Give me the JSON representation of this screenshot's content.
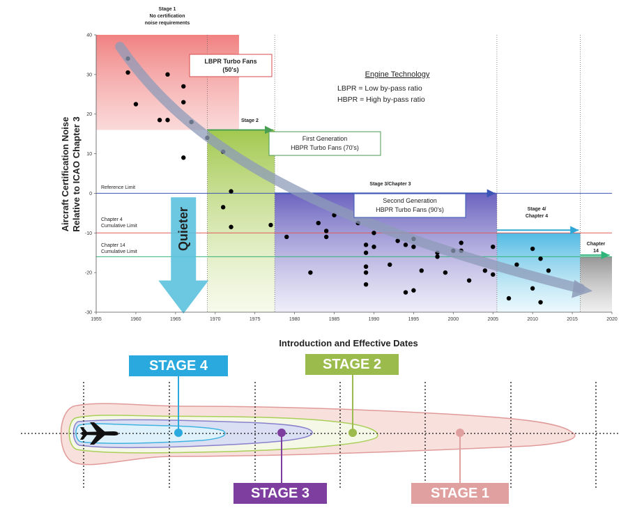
{
  "colors": {
    "stage1_region": "#f28b8b",
    "stage2_region": "#a9cc4a",
    "stage3_region": "#7a72c8",
    "stage4_region": "#6cc7e8",
    "chapter14_region": "#b9b9b9",
    "reference_line": "#3a55b5",
    "chapter4_line": "#e05a5a",
    "chapter14_line": "#2fb57a",
    "trend_arrow": "#9aa6c0",
    "quieter_arrow": "#5bc2dd",
    "badge_stage4": "#2aa9de",
    "badge_stage2": "#9bbb4d",
    "badge_stage3": "#7e3ea0",
    "badge_stage1": "#e0a0a0"
  },
  "chart_data": {
    "type": "scatter",
    "xlabel": "Introduction and Effective Dates",
    "ylabel_line1": "Aircraft Certification Noise",
    "ylabel_line2": "Relative to ICAO Chapter 3",
    "xlim": [
      1955,
      2020
    ],
    "ylim": [
      -30,
      40
    ],
    "x_ticks": [
      "1955",
      "1960",
      "1965",
      "1970",
      "1975",
      "1980",
      "1985",
      "1990",
      "1995",
      "2000",
      "2005",
      "2010",
      "2015",
      "2020"
    ],
    "y_ticks": [
      "40",
      "30",
      "20",
      "10",
      "0",
      "-10",
      "-20",
      "-30"
    ],
    "grid": false,
    "regions": [
      {
        "key": "stage1",
        "x": [
          1955,
          1973
        ],
        "y": [
          16,
          40
        ],
        "label": [
          "Stage 1",
          "No certification",
          "noise requirements"
        ]
      },
      {
        "key": "stage2",
        "x": [
          1969,
          1977.5
        ],
        "y": [
          -30,
          16
        ],
        "label": [
          "Stage 2"
        ]
      },
      {
        "key": "stage3",
        "x": [
          1977.5,
          2005.5
        ],
        "y": [
          -30,
          0
        ],
        "label": [
          "Stage 3/Chapter 3"
        ]
      },
      {
        "key": "stage4",
        "x": [
          2005.5,
          2016
        ],
        "y": [
          -30,
          -10
        ],
        "label": [
          "Stage 4/",
          "Chapter 4"
        ]
      },
      {
        "key": "chapter14",
        "x": [
          2016,
          2020
        ],
        "y": [
          -30,
          -16
        ],
        "label": [
          "Chapter",
          "14"
        ]
      }
    ],
    "reference_lines": [
      {
        "key": "reference",
        "y": 0,
        "label": "Reference Limit"
      },
      {
        "key": "chapter4",
        "y": -10,
        "label": [
          "Chapter 4",
          "Cumulative Limit"
        ]
      },
      {
        "key": "chapter14",
        "y": -16,
        "label": [
          "Chapter 14",
          "Cumulative Limit"
        ]
      }
    ],
    "annotations": [
      {
        "key": "lbpr",
        "lines": [
          "LBPR Turbo Fans",
          "(50's)"
        ]
      },
      {
        "key": "gen1",
        "lines": [
          "First Generation",
          "HBPR Turbo Fans (70's)"
        ]
      },
      {
        "key": "gen2",
        "lines": [
          "Second Generation",
          "HBPR Turbo Fans (90's)"
        ]
      },
      {
        "key": "quieter",
        "lines": [
          "Quieter"
        ]
      }
    ],
    "legend": {
      "title": "Engine Technology",
      "lines": [
        "LBPR =  Low by-pass ratio",
        "HBPR = High by-pass ratio"
      ]
    },
    "points": [
      {
        "x": 1959,
        "y": 34
      },
      {
        "x": 1959,
        "y": 30.5
      },
      {
        "x": 1960,
        "y": 22.5
      },
      {
        "x": 1963,
        "y": 18.5
      },
      {
        "x": 1964,
        "y": 18.5
      },
      {
        "x": 1964,
        "y": 30
      },
      {
        "x": 1966,
        "y": 27
      },
      {
        "x": 1966,
        "y": 23
      },
      {
        "x": 1967,
        "y": 18
      },
      {
        "x": 1966,
        "y": 9
      },
      {
        "x": 1969,
        "y": 14
      },
      {
        "x": 1971,
        "y": 10.5
      },
      {
        "x": 1972,
        "y": 0.5
      },
      {
        "x": 1971,
        "y": -3.5
      },
      {
        "x": 1972,
        "y": -8.5
      },
      {
        "x": 1977,
        "y": -8
      },
      {
        "x": 1979,
        "y": -11
      },
      {
        "x": 1982,
        "y": -20
      },
      {
        "x": 1983,
        "y": -7.5
      },
      {
        "x": 1984,
        "y": -9.5
      },
      {
        "x": 1984,
        "y": -11
      },
      {
        "x": 1985,
        "y": -5.5
      },
      {
        "x": 1988,
        "y": -7.5
      },
      {
        "x": 1989,
        "y": -13
      },
      {
        "x": 1989,
        "y": -15
      },
      {
        "x": 1989,
        "y": -18.5
      },
      {
        "x": 1989,
        "y": -20
      },
      {
        "x": 1989,
        "y": -23
      },
      {
        "x": 1990,
        "y": -10
      },
      {
        "x": 1990,
        "y": -13.5
      },
      {
        "x": 1992,
        "y": -18
      },
      {
        "x": 1993,
        "y": -12
      },
      {
        "x": 1994,
        "y": -13
      },
      {
        "x": 1994,
        "y": -25
      },
      {
        "x": 1995,
        "y": -11.5
      },
      {
        "x": 1995,
        "y": -13.5
      },
      {
        "x": 1995,
        "y": -24.5
      },
      {
        "x": 1996,
        "y": -19.5
      },
      {
        "x": 1998,
        "y": -15
      },
      {
        "x": 1998,
        "y": -16
      },
      {
        "x": 1999,
        "y": -20
      },
      {
        "x": 2000,
        "y": -14.5
      },
      {
        "x": 2001,
        "y": -12.5
      },
      {
        "x": 2001,
        "y": -14.5
      },
      {
        "x": 2002,
        "y": -22
      },
      {
        "x": 2004,
        "y": -19.5
      },
      {
        "x": 2005,
        "y": -13.5
      },
      {
        "x": 2005,
        "y": -20.5
      },
      {
        "x": 2007,
        "y": -26.5
      },
      {
        "x": 2008,
        "y": -18
      },
      {
        "x": 2010,
        "y": -14
      },
      {
        "x": 2011,
        "y": -16.5
      },
      {
        "x": 2010,
        "y": -24
      },
      {
        "x": 2011,
        "y": -27.5
      },
      {
        "x": 2012,
        "y": -19.5
      }
    ]
  },
  "stage_badges": {
    "stage4": "STAGE 4",
    "stage2": "STAGE 2",
    "stage3": "STAGE 3",
    "stage1": "STAGE 1"
  }
}
